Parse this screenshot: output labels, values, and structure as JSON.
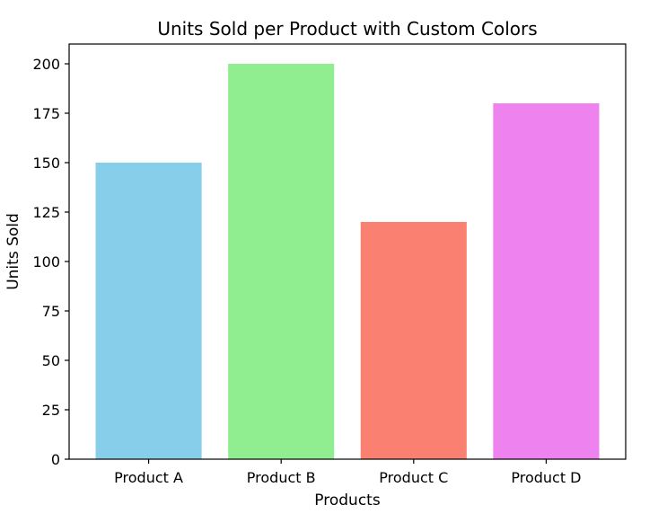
{
  "chart_data": {
    "type": "bar",
    "title": "Units Sold per Product with Custom Colors",
    "xlabel": "Products",
    "ylabel": "Units Sold",
    "categories": [
      "Product A",
      "Product B",
      "Product C",
      "Product D"
    ],
    "values": [
      150,
      200,
      120,
      180
    ],
    "colors": [
      "#87ceeb",
      "#90ee90",
      "#fa8072",
      "#ee82ee"
    ],
    "ylim": [
      0,
      210
    ],
    "yticks": [
      0,
      25,
      50,
      75,
      100,
      125,
      150,
      175,
      200
    ],
    "grid": false,
    "legend": "none"
  }
}
